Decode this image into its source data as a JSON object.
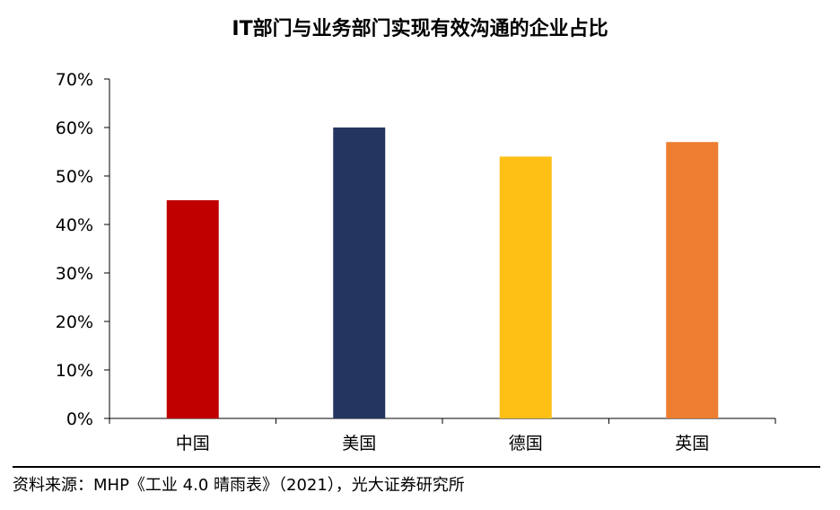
{
  "chart_data": {
    "type": "bar",
    "title": "IT部门与业务部门实现有效沟通的企业占比",
    "categories": [
      "中国",
      "美国",
      "德国",
      "英国"
    ],
    "values": [
      45,
      60,
      54,
      57
    ],
    "colors": [
      "#C00000",
      "#243660",
      "#FFC015",
      "#ED7D31"
    ],
    "ylim": [
      0,
      70
    ],
    "yticks": [
      0,
      10,
      20,
      30,
      40,
      50,
      60,
      70
    ],
    "ytick_labels": [
      "0%",
      "10%",
      "20%",
      "30%",
      "40%",
      "50%",
      "60%",
      "70%"
    ],
    "grid": false,
    "legend": "none"
  },
  "source": "资料来源：MHP《工业 4.0 晴雨表》（2021），光大证券研究所"
}
